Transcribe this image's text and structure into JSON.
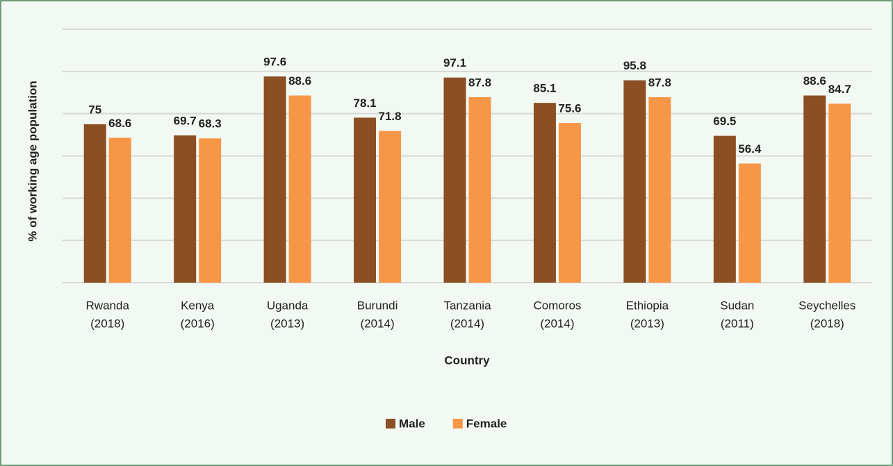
{
  "chart_data": {
    "type": "bar",
    "x_label": "Country",
    "y_label": "% of working age population",
    "categories": [
      [
        "Rwanda",
        "(2018)"
      ],
      [
        "Kenya",
        "(2016)"
      ],
      [
        "Uganda",
        "(2013)"
      ],
      [
        "Burundi",
        "(2014)"
      ],
      [
        "Tanzania",
        "(2014)"
      ],
      [
        "Comoros",
        "(2014)"
      ],
      [
        "Ethiopia",
        "(2013)"
      ],
      [
        "Sudan",
        "(2011)"
      ],
      [
        "Seychelles",
        "(2018)"
      ]
    ],
    "series": [
      {
        "name": "Male",
        "color": "#8b4f23",
        "values": [
          75,
          69.7,
          97.6,
          78.1,
          97.1,
          85.1,
          95.8,
          69.5,
          88.6
        ]
      },
      {
        "name": "Female",
        "color": "#f79646",
        "values": [
          68.6,
          68.3,
          88.6,
          71.8,
          87.8,
          75.6,
          87.8,
          56.4,
          84.7
        ]
      }
    ],
    "ylim": [
      0,
      120
    ],
    "yticks": [
      0,
      20,
      40,
      60,
      80,
      100,
      120
    ],
    "grid": true,
    "legend": "bottom"
  }
}
